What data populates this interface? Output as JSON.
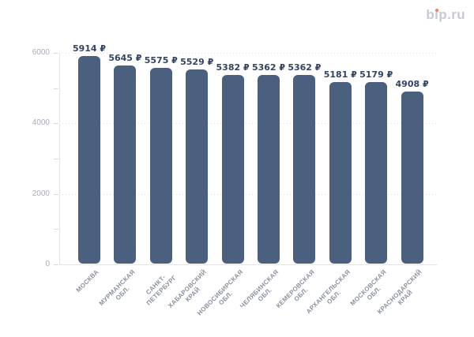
{
  "background": "#ffffff",
  "logo": {
    "text": "bip.ru",
    "parts": {
      "pre": "b",
      "i_dotless": "ı",
      "post": "p.ru"
    },
    "color": "#c6c9d6",
    "dot_color": "#ee7f5f"
  },
  "chart_data": {
    "type": "bar",
    "title": "",
    "xlabel": "",
    "ylabel": "",
    "categories": [
      "МОСКВА",
      "МУРМАНСКАЯ ОБЛ.",
      "САНКТ-ПЕТЕРБУРГ",
      "ХАБАРОВСКИЙ КРАЙ",
      "НОВОСИБИРСКАЯ ОБЛ.",
      "ЧЕЛЯБИНСКАЯ ОБЛ.",
      "КЕМЕРОВСКАЯ ОБЛ.",
      "АРХАНГЕЛЬСКАЯ ОБЛ.",
      "МОСКОВСКАЯ ОБЛ.",
      "КРАСНОДАРСКИЙ КРАЙ"
    ],
    "category_label_lines": [
      [
        "МОСКВА"
      ],
      [
        "МУРМАНСКАЯ",
        "ОБЛ."
      ],
      [
        "САНКТ-",
        "ПЕТЕРБУРГ"
      ],
      [
        "ХАБАРОВСКИЙ",
        "КРАЙ"
      ],
      [
        "НОВОСИБИРСКАЯ",
        "ОБЛ."
      ],
      [
        "ЧЕЛЯБИНСКАЯ",
        "ОБЛ."
      ],
      [
        "КЕМЕРОВСКАЯ",
        "ОБЛ."
      ],
      [
        "АРХАНГЕЛЬСКАЯ",
        "ОБЛ."
      ],
      [
        "МОСКОВСКАЯ",
        "ОБЛ."
      ],
      [
        "КРАСНОДАРСКИЙ",
        "КРАЙ"
      ]
    ],
    "values": [
      5914,
      5645,
      5575,
      5529,
      5382,
      5362,
      5362,
      5181,
      5179,
      4908
    ],
    "value_suffix": "₽",
    "ylim": [
      0,
      6000
    ],
    "yticks_labeled": [
      0,
      2000,
      4000,
      6000
    ],
    "ytick_minor_step": 1000,
    "grid": "horizontal-dotted",
    "legend": "none",
    "bar_corner_radius": 6,
    "colors": {
      "bar": "#4b5f7f",
      "value_label": "#344460",
      "axis_label": "#a8acba",
      "category_label": "#8b909f",
      "grid_line": "#e0e1e9",
      "axis_line": "#e3e4eb",
      "tick": "#d9dae2"
    }
  }
}
